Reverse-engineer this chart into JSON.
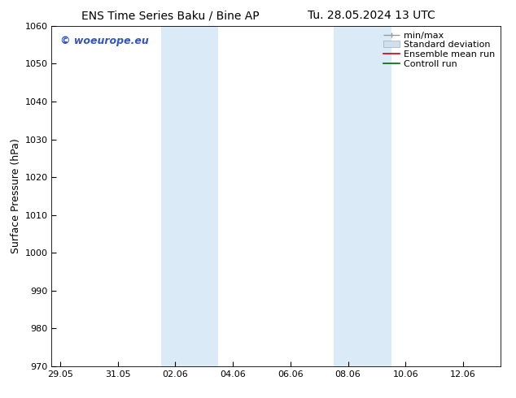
{
  "title_left": "ENS Time Series Baku / Bine AP",
  "title_right": "Tu. 28.05.2024 13 UTC",
  "ylabel": "Surface Pressure (hPa)",
  "ylim": [
    970,
    1060
  ],
  "yticks": [
    970,
    980,
    990,
    1000,
    1010,
    1020,
    1030,
    1040,
    1050,
    1060
  ],
  "xtick_labels": [
    "29.05",
    "31.05",
    "02.06",
    "04.06",
    "06.06",
    "08.06",
    "10.06",
    "12.06"
  ],
  "xtick_positions": [
    0,
    2,
    4,
    6,
    8,
    10,
    12,
    14
  ],
  "xlim": [
    -0.3,
    15.3
  ],
  "shaded_bands": [
    {
      "x_start": 3.5,
      "x_end": 5.5,
      "color": "#daeaf7"
    },
    {
      "x_start": 9.5,
      "x_end": 11.5,
      "color": "#daeaf7"
    }
  ],
  "watermark_text": "© woeurope.eu",
  "watermark_color": "#3355bb",
  "background_color": "#ffffff",
  "plot_bg_color": "#ffffff",
  "spine_color": "#000000",
  "tick_color": "#000000",
  "title_fontsize": 10,
  "ylabel_fontsize": 9,
  "tick_fontsize": 8,
  "legend_fontsize": 8,
  "watermark_fontsize": 9
}
